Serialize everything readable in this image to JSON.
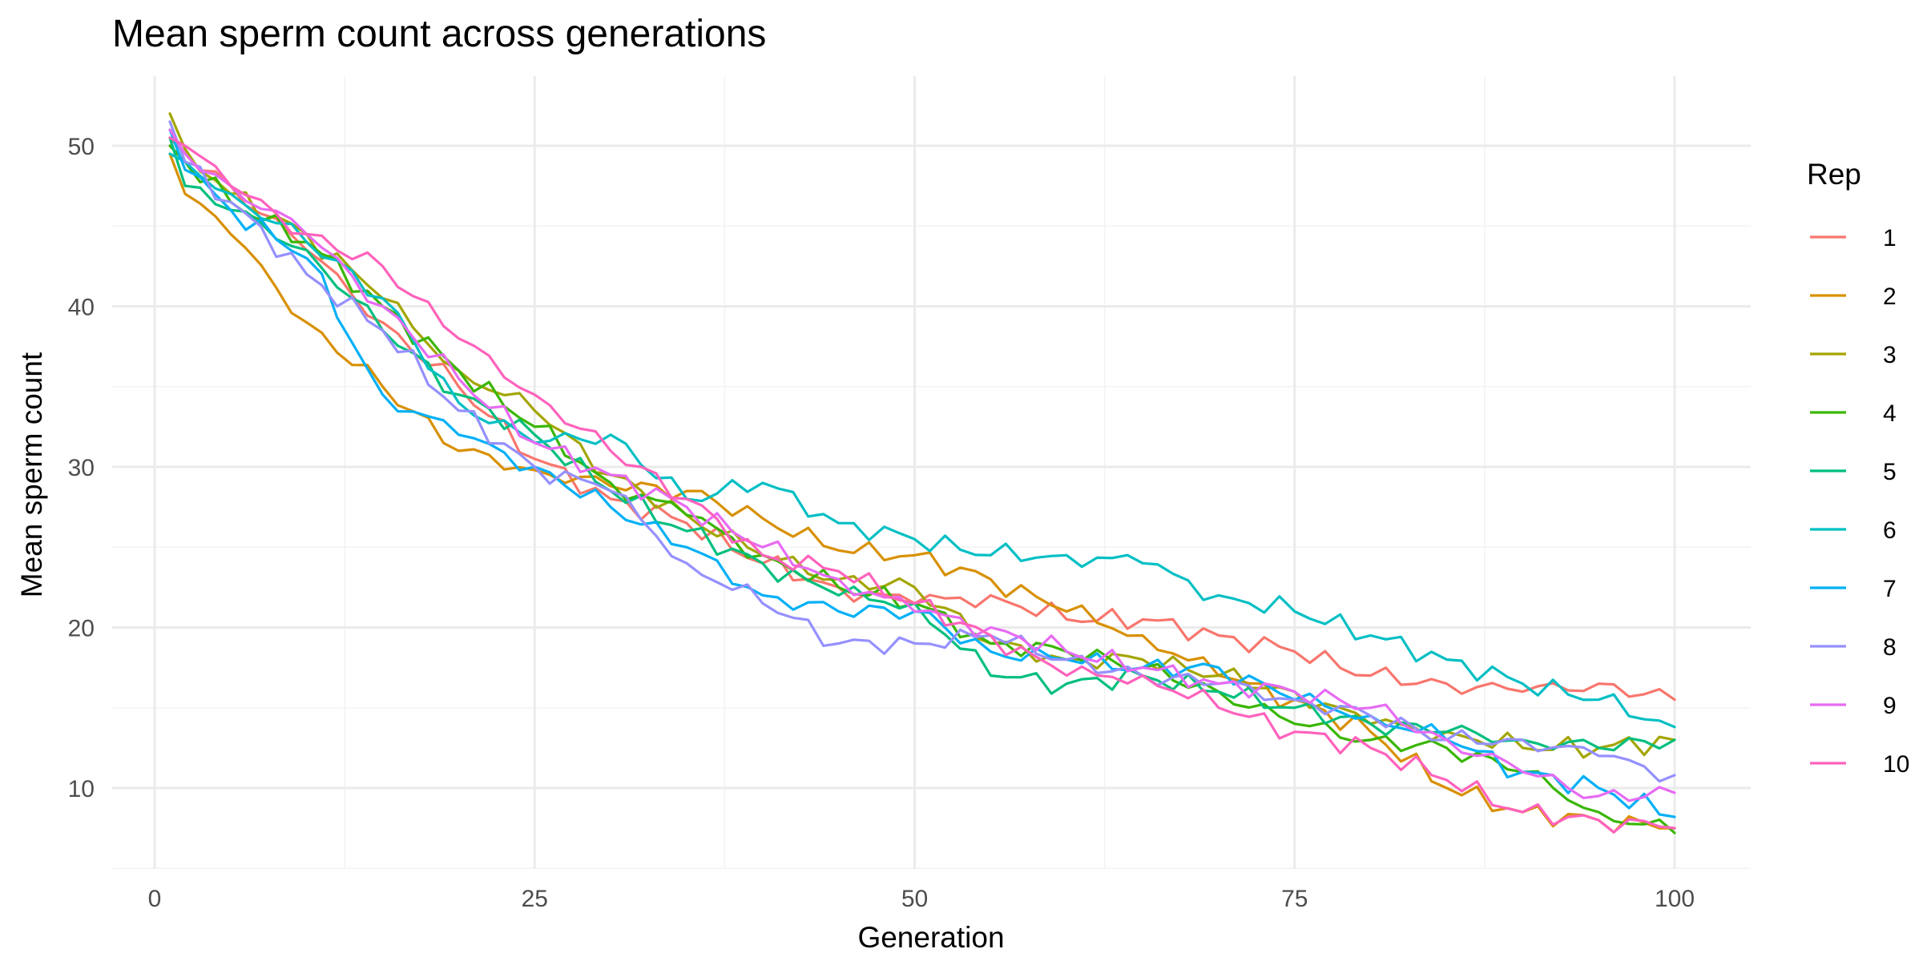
{
  "chart_data": {
    "type": "line",
    "title": "Mean sperm count across generations",
    "xlabel": "Generation",
    "ylabel": "Mean sperm count",
    "xlim": [
      1,
      100
    ],
    "ylim": [
      5,
      54
    ],
    "x_ticks": [
      0,
      25,
      50,
      75,
      100
    ],
    "y_ticks": [
      10,
      20,
      30,
      40,
      50
    ],
    "grid": true,
    "legend": {
      "title": "Rep",
      "position": "right"
    },
    "x_points": [
      1,
      2,
      5,
      10,
      15,
      20,
      25,
      30,
      35,
      40,
      45,
      50,
      55,
      60,
      65,
      70,
      75,
      80,
      85,
      90,
      95,
      100
    ],
    "series": [
      {
        "name": "1",
        "color": "#F8766D",
        "values": [
          50.5,
          49.5,
          47.5,
          43.5,
          39.0,
          35.0,
          30.5,
          28.0,
          26.5,
          24.0,
          22.5,
          21.5,
          22.0,
          20.5,
          20.5,
          19.5,
          18.5,
          17.0,
          16.5,
          16.0,
          16.5,
          15.5
        ]
      },
      {
        "name": "2",
        "color": "#D89000",
        "values": [
          49.5,
          47.0,
          44.5,
          39.0,
          35.0,
          31.0,
          29.8,
          28.8,
          28.5,
          26.8,
          24.8,
          24.5,
          23.0,
          21.0,
          19.5,
          17.0,
          15.5,
          13.5,
          10.0,
          8.5,
          8.0,
          7.5
        ]
      },
      {
        "name": "3",
        "color": "#A3A500",
        "values": [
          52.0,
          49.8,
          47.0,
          44.5,
          40.5,
          36.0,
          33.5,
          29.5,
          27.0,
          24.5,
          23.0,
          22.5,
          19.0,
          18.0,
          18.0,
          17.0,
          16.0,
          14.0,
          13.5,
          12.5,
          12.5,
          13.0
        ]
      },
      {
        "name": "4",
        "color": "#39B600",
        "values": [
          50.0,
          49.0,
          46.5,
          44.0,
          40.0,
          36.0,
          32.5,
          29.0,
          27.0,
          24.5,
          22.5,
          21.5,
          19.0,
          18.5,
          17.5,
          16.0,
          14.0,
          13.0,
          12.5,
          11.0,
          8.5,
          7.2
        ]
      },
      {
        "name": "5",
        "color": "#00BF7D",
        "values": [
          50.5,
          47.5,
          46.0,
          43.5,
          38.5,
          34.5,
          32.0,
          28.5,
          26.0,
          24.0,
          22.0,
          21.5,
          17.0,
          16.5,
          17.0,
          16.0,
          15.0,
          14.0,
          13.5,
          13.0,
          12.5,
          13.0
        ]
      },
      {
        "name": "6",
        "color": "#00BFC4",
        "values": [
          49.5,
          49.0,
          47.0,
          44.0,
          40.5,
          34.0,
          31.5,
          32.0,
          28.0,
          29.0,
          26.5,
          25.5,
          24.5,
          24.5,
          24.0,
          22.0,
          21.0,
          19.5,
          18.0,
          16.5,
          15.5,
          13.8
        ]
      },
      {
        "name": "7",
        "color": "#00B0F6",
        "values": [
          51.0,
          48.5,
          46.0,
          43.0,
          34.5,
          32.0,
          30.0,
          27.5,
          25.0,
          22.0,
          21.0,
          21.0,
          18.5,
          18.0,
          17.5,
          17.5,
          15.5,
          14.5,
          13.0,
          11.0,
          10.0,
          8.2
        ]
      },
      {
        "name": "8",
        "color": "#9590FF",
        "values": [
          51.5,
          49.0,
          46.5,
          42.0,
          38.5,
          33.5,
          30.0,
          28.5,
          24.0,
          21.5,
          19.0,
          19.0,
          19.5,
          18.0,
          17.0,
          16.5,
          15.5,
          14.5,
          13.0,
          13.0,
          12.0,
          10.8
        ]
      },
      {
        "name": "9",
        "color": "#E76BF3",
        "values": [
          51.0,
          49.5,
          47.5,
          44.5,
          40.0,
          35.5,
          31.5,
          29.5,
          27.5,
          25.0,
          23.0,
          21.0,
          20.0,
          18.5,
          17.5,
          16.5,
          16.0,
          15.0,
          13.0,
          11.0,
          9.5,
          9.7
        ]
      },
      {
        "name": "10",
        "color": "#FF62BC",
        "values": [
          50.5,
          50.0,
          47.5,
          44.5,
          42.5,
          38.0,
          34.5,
          31.0,
          28.0,
          24.5,
          23.5,
          21.5,
          19.5,
          17.0,
          17.0,
          15.0,
          13.5,
          12.5,
          10.5,
          8.5,
          8.0,
          7.5
        ]
      }
    ]
  }
}
